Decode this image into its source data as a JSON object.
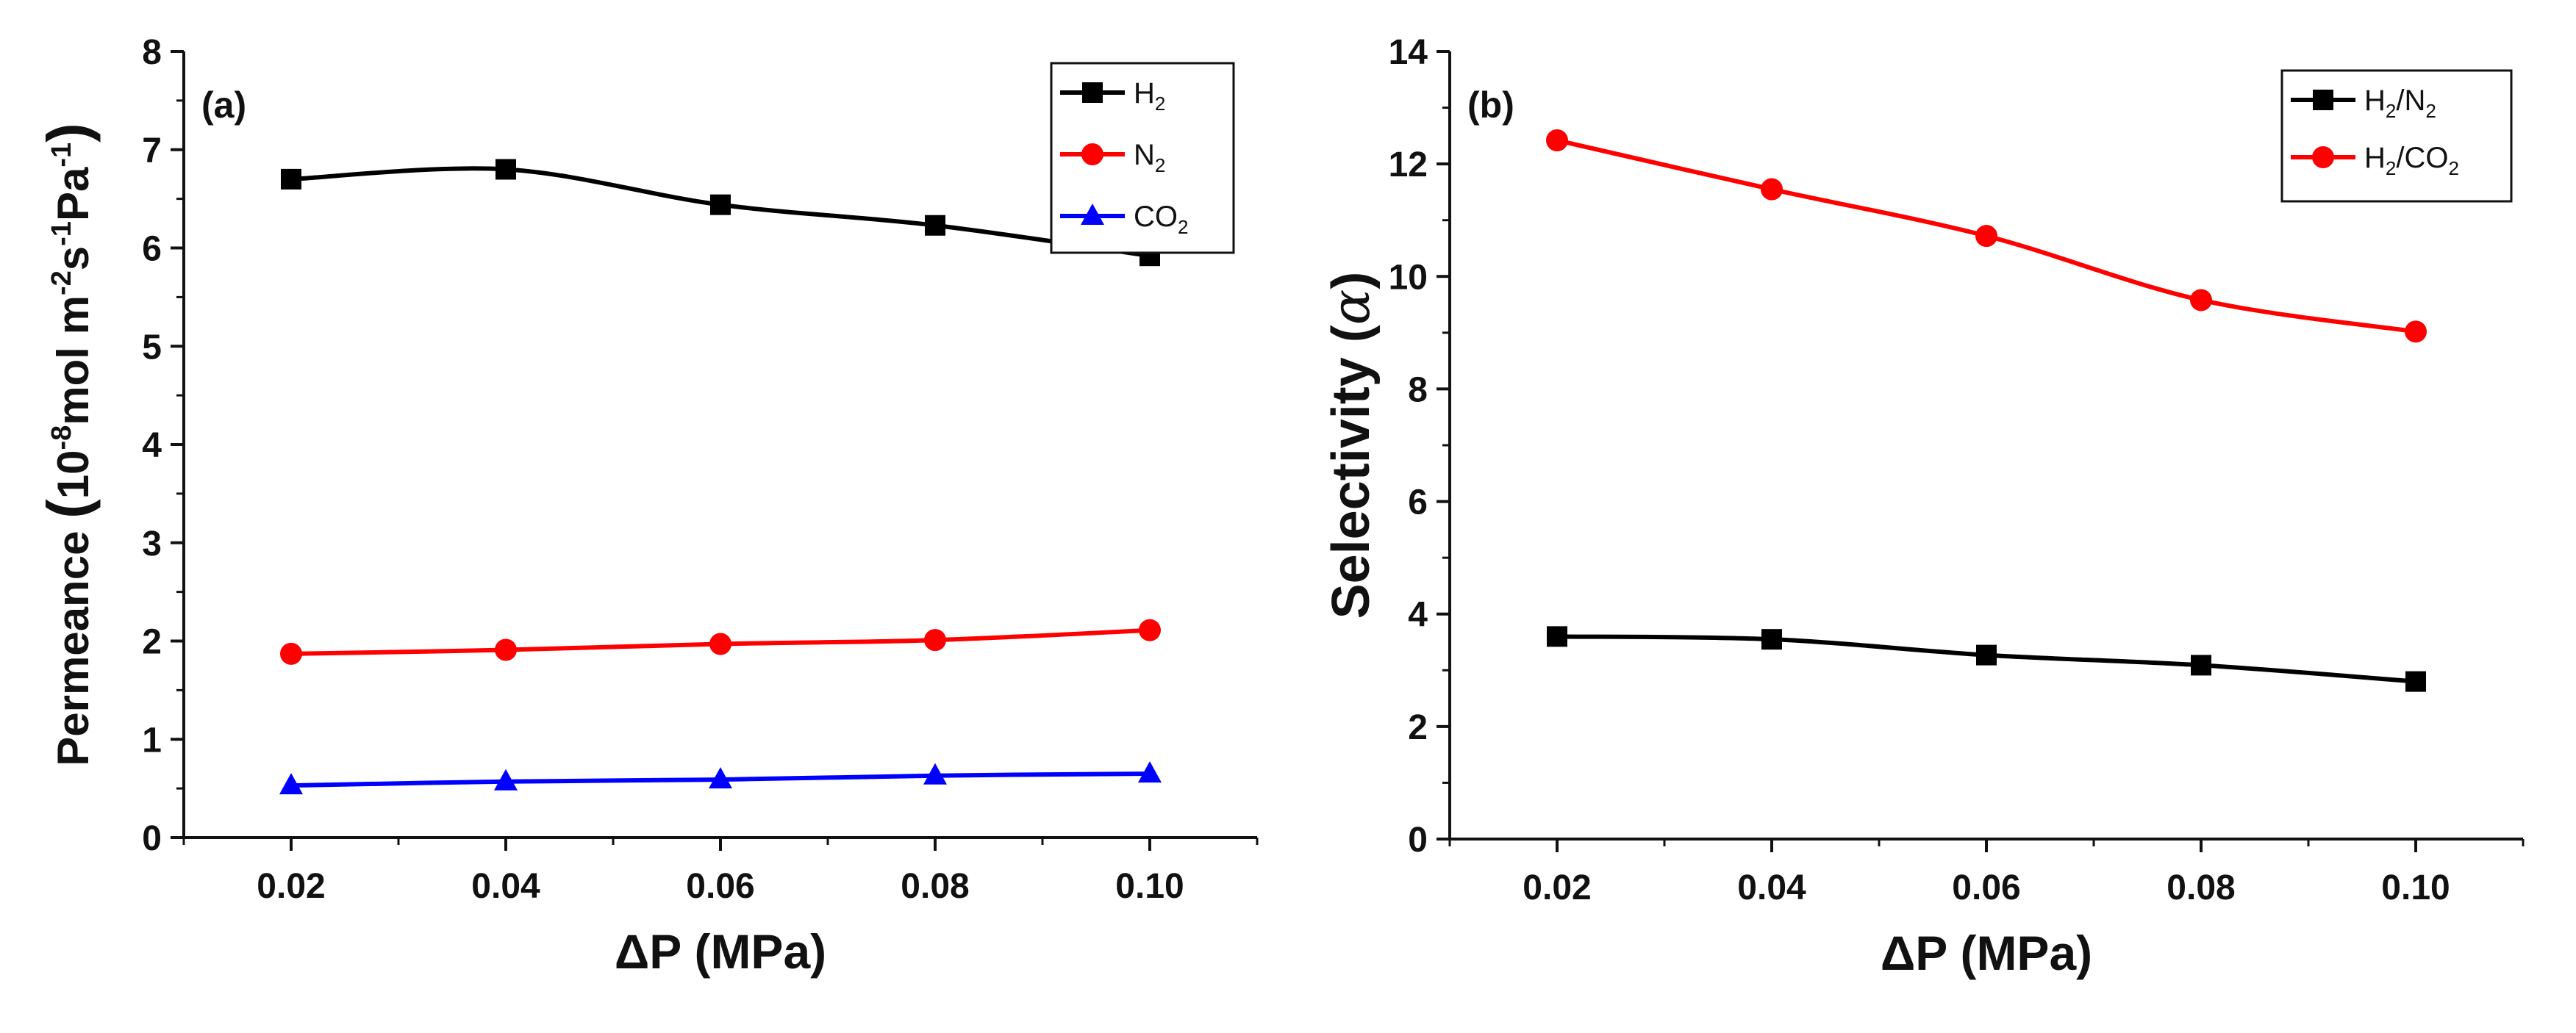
{
  "chart_data": [
    {
      "type": "line",
      "panel_label": "(a)",
      "xlabel": "ΔP (MPa)",
      "ylabel": {
        "word": "Permeance",
        "open": "(",
        "base": "10",
        "exp1": "-8",
        "unit1": "mol m",
        "exp2": "-2",
        "unit2": "s",
        "exp3": "-1",
        "unit3": "Pa",
        "exp4": "-1",
        "close": ")"
      },
      "xlim": [
        0.01,
        0.11
      ],
      "ylim": [
        0,
        8
      ],
      "grid": false,
      "legend_position": "top-right",
      "x": [
        0.02,
        0.04,
        0.06,
        0.08,
        0.1
      ],
      "xtick_labels": [
        "0.02",
        "0.04",
        "0.06",
        "0.08",
        "0.10"
      ],
      "yticks": [
        0,
        1,
        2,
        3,
        4,
        5,
        6,
        7,
        8
      ],
      "ytick_labels": [
        "0",
        "1",
        "2",
        "3",
        "4",
        "5",
        "6",
        "7",
        "8"
      ],
      "series": [
        {
          "name": "H2",
          "label_main": "H",
          "label_sub": "2",
          "label_after": "",
          "color": "#000000",
          "marker": "square",
          "values": [
            6.7,
            6.8,
            6.44,
            6.23,
            5.92
          ]
        },
        {
          "name": "N2",
          "label_main": "N",
          "label_sub": "2",
          "label_after": "",
          "color": "#ff0000",
          "marker": "circle",
          "values": [
            1.87,
            1.91,
            1.97,
            2.01,
            2.11
          ]
        },
        {
          "name": "CO2",
          "label_main": "CO",
          "label_sub": "2",
          "label_after": "",
          "color": "#0000ff",
          "marker": "triangle",
          "values": [
            0.53,
            0.57,
            0.59,
            0.63,
            0.65
          ]
        }
      ]
    },
    {
      "type": "line",
      "panel_label": "(b)",
      "xlabel": "ΔP (MPa)",
      "ylabel": {
        "word": "Selectivity",
        "open": "(",
        "symbol": "α",
        "close": ")"
      },
      "xlim": [
        0.01,
        0.11
      ],
      "ylim": [
        0,
        14
      ],
      "grid": false,
      "legend_position": "top-right",
      "x": [
        0.02,
        0.04,
        0.06,
        0.08,
        0.1
      ],
      "xtick_labels": [
        "0.02",
        "0.04",
        "0.06",
        "0.08",
        "0.10"
      ],
      "yticks": [
        0,
        2,
        4,
        6,
        8,
        10,
        12,
        14
      ],
      "ytick_labels": [
        "0",
        "2",
        "4",
        "6",
        "8",
        "10",
        "12",
        "14"
      ],
      "series": [
        {
          "name": "H2/N2",
          "label_main": "H",
          "label_sub": "2",
          "label_after": "/N",
          "label_sub2": "2",
          "color": "#000000",
          "marker": "square",
          "values": [
            3.6,
            3.55,
            3.27,
            3.09,
            2.8
          ]
        },
        {
          "name": "H2/CO2",
          "label_main": "H",
          "label_sub": "2",
          "label_after": "/CO",
          "label_sub2": "2",
          "color": "#ff0000",
          "marker": "circle",
          "values": [
            12.42,
            11.55,
            10.72,
            9.58,
            9.02
          ]
        }
      ]
    }
  ]
}
